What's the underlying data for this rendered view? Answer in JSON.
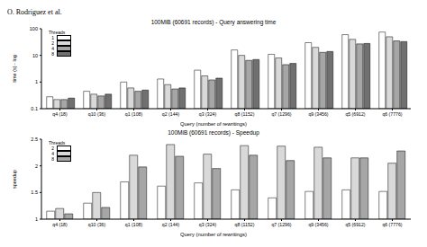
{
  "header": "O. Rodriguez et al.",
  "chart_data": [
    {
      "type": "bar",
      "title": "100MiB (60691 records) - Query answering time",
      "x_label": "Query (number of rewritings)",
      "y_label": "time (s) - log",
      "categories": [
        "q4 (18)",
        "q10 (36)",
        "q1 (108)",
        "q2 (144)",
        "q3 (324)",
        "q8 (1152)",
        "q7 (1296)",
        "q9 (3456)",
        "q5 (6912)",
        "q6 (7776)"
      ],
      "series": [
        {
          "name": "1",
          "color": "#ffffff",
          "values": [
            0.28,
            0.45,
            1.0,
            1.3,
            2.8,
            16,
            11,
            30,
            60,
            75
          ]
        },
        {
          "name": "2",
          "color": "#d9d9d9",
          "values": [
            0.22,
            0.35,
            0.6,
            0.8,
            1.7,
            10,
            8,
            20,
            40,
            50
          ]
        },
        {
          "name": "4",
          "color": "#a6a6a6",
          "values": [
            0.22,
            0.3,
            0.45,
            0.55,
            1.2,
            6.5,
            4.5,
            13,
            27,
            35
          ]
        },
        {
          "name": "8",
          "color": "#707070",
          "values": [
            0.25,
            0.35,
            0.5,
            0.6,
            1.4,
            7,
            5,
            14,
            28,
            33
          ]
        }
      ],
      "log": "y",
      "ylim": [
        0.1,
        100
      ],
      "yticks": [
        0.1,
        1,
        10,
        100
      ],
      "grid": false,
      "legend": "top-left",
      "legend_title": "Threads"
    },
    {
      "type": "bar",
      "title": "100MiB (60691 records) - Speedup",
      "x_label": "Query (number of rewritings)",
      "y_label": "speedup",
      "categories": [
        "q4 (18)",
        "q10 (36)",
        "q1 (108)",
        "q2 (144)",
        "q3 (324)",
        "q8 (1152)",
        "q7 (1296)",
        "q9 (3456)",
        "q5 (6912)",
        "q6 (7776)"
      ],
      "series": [
        {
          "name": "2",
          "color": "#ffffff",
          "values": [
            1.15,
            1.3,
            1.7,
            1.62,
            1.68,
            1.55,
            1.4,
            1.52,
            1.55,
            1.52
          ]
        },
        {
          "name": "4",
          "color": "#d9d9d9",
          "values": [
            1.2,
            1.5,
            2.2,
            2.4,
            2.22,
            2.38,
            2.37,
            2.35,
            2.15,
            2.05
          ]
        },
        {
          "name": "8",
          "color": "#a6a6a6",
          "values": [
            1.1,
            1.22,
            1.98,
            2.18,
            1.95,
            2.2,
            2.1,
            2.15,
            2.15,
            2.28
          ]
        }
      ],
      "ylim": [
        1,
        2.5
      ],
      "yticks": [
        1,
        1.5,
        2,
        2.5
      ],
      "grid": false,
      "legend": "top-left",
      "legend_title": "Threads"
    }
  ]
}
